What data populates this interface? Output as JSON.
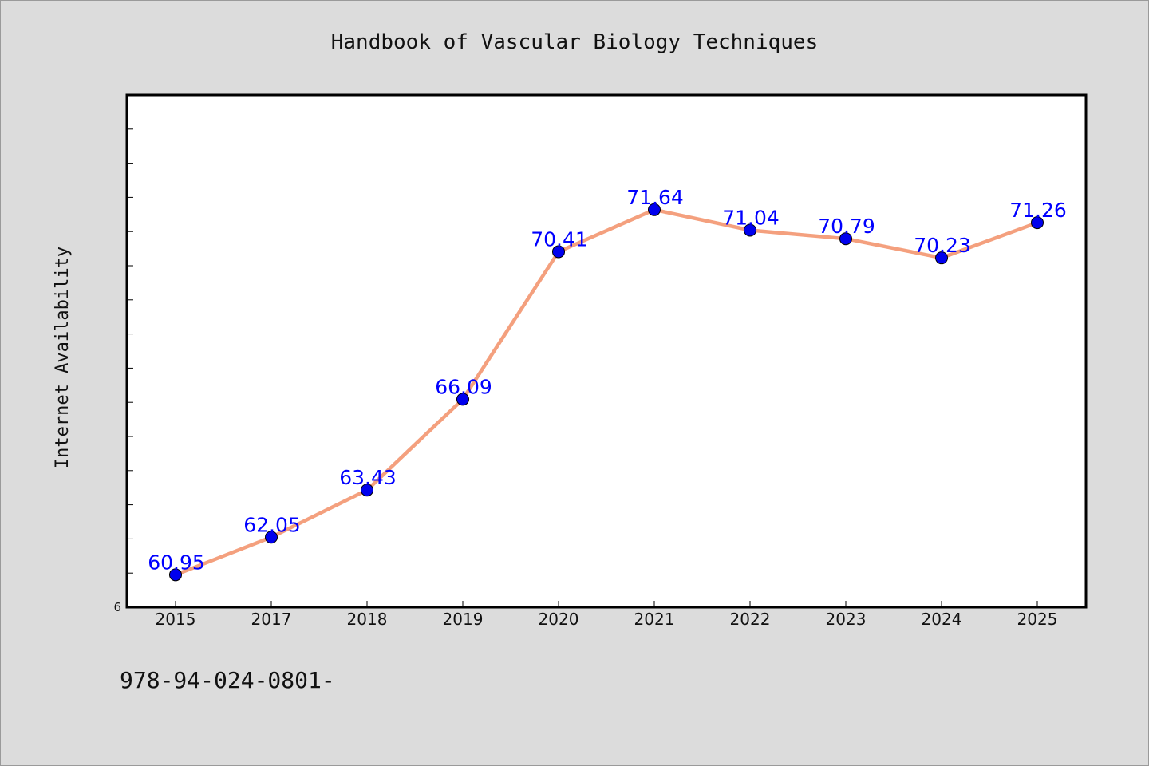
{
  "colors": {
    "background": "#dcdcdc",
    "plot_background": "#ffffff",
    "line": "#f4a07e",
    "marker": "#0000ee",
    "data_label": "#0000ff"
  },
  "chart_data": {
    "type": "line",
    "title": "Handbook of Vascular Biology Techniques",
    "ylabel": "Internet Availability",
    "xlabel": "",
    "categories": [
      "2015",
      "2017",
      "2018",
      "2019",
      "2020",
      "2021",
      "2022",
      "2023",
      "2024",
      "2025"
    ],
    "series": [
      {
        "values": [
          60.95,
          62.05,
          63.43,
          66.09,
          70.41,
          71.64,
          71.04,
          70.79,
          70.23,
          71.26
        ],
        "labels": [
          "60.95",
          "62.05",
          "63.43",
          "66.09",
          "70.41",
          "71.64",
          "71.04",
          "70.79",
          "70.23",
          "71.26"
        ]
      }
    ],
    "ylim": [
      60,
      75
    ],
    "y_visible_tick_label": "6",
    "grid": false,
    "legend": "none"
  },
  "footer": {
    "isbn": "978-94-024-0801-"
  }
}
